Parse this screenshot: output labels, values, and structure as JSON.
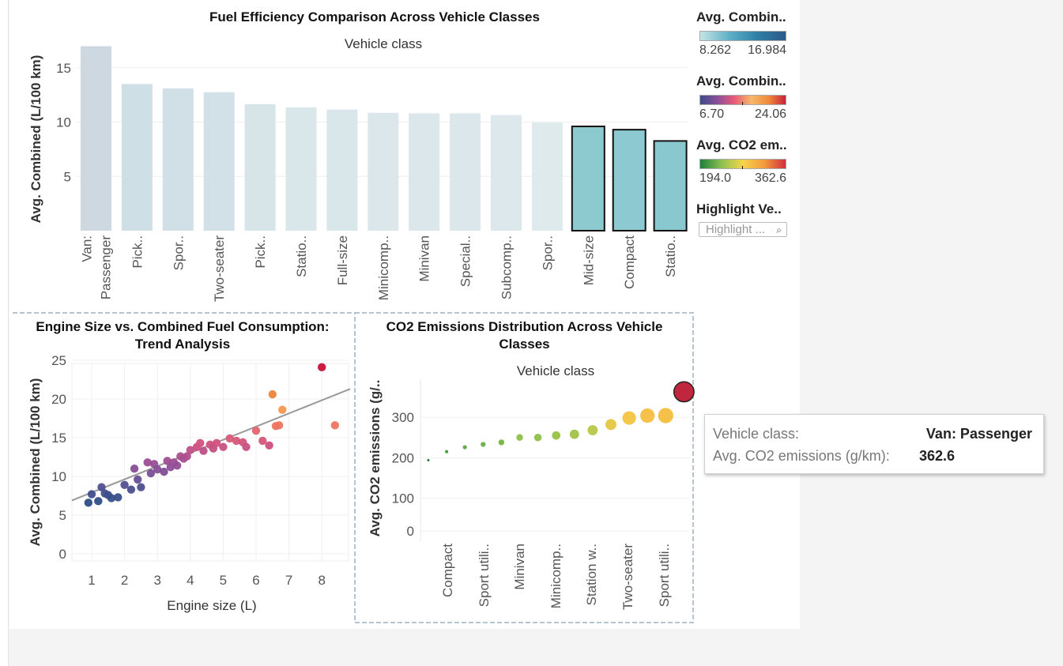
{
  "bar_chart": {
    "title": "Fuel Efficiency Comparison Across Vehicle Classes",
    "header": "Vehicle class",
    "ylabel": "Avg. Combined (L/100 km)"
  },
  "scatter_chart": {
    "title_line1": "Engine Size vs. Combined Fuel Consumption:",
    "title_line2": "Trend Analysis",
    "xlabel": "Engine size (L)",
    "ylabel": "Avg. Combined (L/100 km)"
  },
  "bubble_chart": {
    "title_line1": "CO2 Emissions Distribution Across Vehicle",
    "title_line2": "Classes",
    "header": "Vehicle class",
    "ylabel": "Avg. CO2 emissions (g/.."
  },
  "legends": {
    "l1": {
      "title": "Avg. Combin..",
      "min": "8.262",
      "max": "16.984"
    },
    "l2": {
      "title": "Avg. Combin..",
      "min": "6.70",
      "max": "24.06"
    },
    "l3": {
      "title": "Avg. CO2 em..",
      "min": "194.0",
      "max": "362.6"
    },
    "l4": {
      "title": "Highlight Ve..",
      "placeholder": "Highlight ...",
      "icon": "search-icon"
    }
  },
  "tooltip": {
    "label1": "Vehicle class:",
    "value1": "Van: Passenger",
    "label2": "Avg. CO2 emissions (g/km):",
    "value2": "362.6"
  },
  "colors": {
    "bar_faded": "#d8e7ea",
    "bar_highlight": "#96cfd2",
    "trend_line": "#999999"
  },
  "chart_data": [
    {
      "type": "bar",
      "title": "Fuel Efficiency Comparison Across Vehicle Classes",
      "xlabel": "Vehicle class",
      "ylabel": "Avg. Combined (L/100 km)",
      "ylim": [
        0,
        17
      ],
      "yticks": [
        5,
        10,
        15
      ],
      "categories": [
        {
          "line1": "Van:",
          "line2": "Passenger"
        },
        {
          "line1": "Pick..",
          "line2": ""
        },
        {
          "line1": "Spor..",
          "line2": ""
        },
        {
          "line1": "Two-seater",
          "line2": ""
        },
        {
          "line1": "Pick..",
          "line2": ""
        },
        {
          "line1": "Statio..",
          "line2": ""
        },
        {
          "line1": "Full-size",
          "line2": ""
        },
        {
          "line1": "Minicomp..",
          "line2": ""
        },
        {
          "line1": "Minivan",
          "line2": ""
        },
        {
          "line1": "Special..",
          "line2": ""
        },
        {
          "line1": "Subcomp..",
          "line2": ""
        },
        {
          "line1": "Spor..",
          "line2": ""
        },
        {
          "line1": "Mid-size",
          "line2": ""
        },
        {
          "line1": "Compact",
          "line2": ""
        },
        {
          "line1": "Statio..",
          "line2": ""
        }
      ],
      "values": [
        16.98,
        13.5,
        13.1,
        12.75,
        11.65,
        11.35,
        11.15,
        10.85,
        10.8,
        10.8,
        10.65,
        9.95,
        9.6,
        9.3,
        8.26
      ],
      "highlighted": [
        false,
        false,
        false,
        false,
        false,
        false,
        false,
        false,
        false,
        false,
        false,
        false,
        true,
        true,
        true
      ],
      "grid": true
    },
    {
      "type": "scatter",
      "title": "Engine Size vs. Combined Fuel Consumption: Trend Analysis",
      "xlabel": "Engine size (L)",
      "ylabel": "Avg. Combined (L/100 km)",
      "xlim": [
        0.3,
        8.8
      ],
      "ylim": [
        -1,
        26
      ],
      "xticks": [
        1,
        2,
        3,
        4,
        5,
        6,
        7,
        8
      ],
      "yticks": [
        0,
        5,
        10,
        15,
        20,
        25
      ],
      "trend_line": [
        [
          0.0,
          6.2
        ],
        [
          8.8,
          21.5
        ]
      ],
      "points": [
        [
          0.9,
          6.6
        ],
        [
          1.0,
          7.7
        ],
        [
          1.2,
          6.8
        ],
        [
          1.3,
          8.6
        ],
        [
          1.4,
          7.8
        ],
        [
          1.5,
          7.6
        ],
        [
          1.6,
          7.2
        ],
        [
          1.8,
          7.3
        ],
        [
          2.0,
          8.9
        ],
        [
          2.2,
          8.3
        ],
        [
          2.3,
          11.0
        ],
        [
          2.4,
          9.6
        ],
        [
          2.5,
          8.6
        ],
        [
          2.7,
          11.8
        ],
        [
          2.8,
          10.4
        ],
        [
          2.9,
          11.6
        ],
        [
          3.0,
          10.9
        ],
        [
          3.2,
          10.6
        ],
        [
          3.3,
          12.0
        ],
        [
          3.4,
          11.2
        ],
        [
          3.5,
          11.8
        ],
        [
          3.6,
          11.4
        ],
        [
          3.7,
          12.6
        ],
        [
          3.8,
          12.3
        ],
        [
          3.9,
          12.6
        ],
        [
          4.0,
          13.4
        ],
        [
          4.2,
          13.8
        ],
        [
          4.3,
          14.3
        ],
        [
          4.4,
          13.3
        ],
        [
          4.6,
          14.1
        ],
        [
          4.7,
          13.6
        ],
        [
          4.8,
          14.3
        ],
        [
          5.0,
          13.8
        ],
        [
          5.2,
          14.9
        ],
        [
          5.4,
          14.6
        ],
        [
          5.6,
          14.4
        ],
        [
          5.7,
          13.8
        ],
        [
          6.0,
          15.9
        ],
        [
          6.2,
          14.6
        ],
        [
          6.4,
          14.0
        ],
        [
          6.5,
          20.6
        ],
        [
          6.6,
          16.5
        ],
        [
          6.7,
          16.6
        ],
        [
          6.8,
          18.6
        ],
        [
          8.0,
          24.1
        ],
        [
          8.4,
          16.6
        ]
      ],
      "color_range": [
        6.7,
        24.06
      ]
    },
    {
      "type": "scatter",
      "title": "CO2 Emissions Distribution Across Vehicle Classes",
      "xlabel": "Vehicle class",
      "ylabel": "Avg. CO2 emissions (g/..",
      "ylim": [
        -15,
        385
      ],
      "yticks": [
        0,
        100,
        200,
        300
      ],
      "category_labels": [
        "Compact",
        "Sport utili..",
        "Minivan",
        "Minicomp..",
        "Station w..",
        "Two-seater",
        "Sport utili.."
      ],
      "values": [
        194.0,
        215.0,
        226.0,
        233.0,
        238.0,
        250.0,
        250.0,
        255.0,
        258.0,
        268.0,
        282.0,
        298.0,
        304.0,
        304.0,
        362.6
      ],
      "color_range": [
        194.0,
        362.6
      ]
    }
  ]
}
